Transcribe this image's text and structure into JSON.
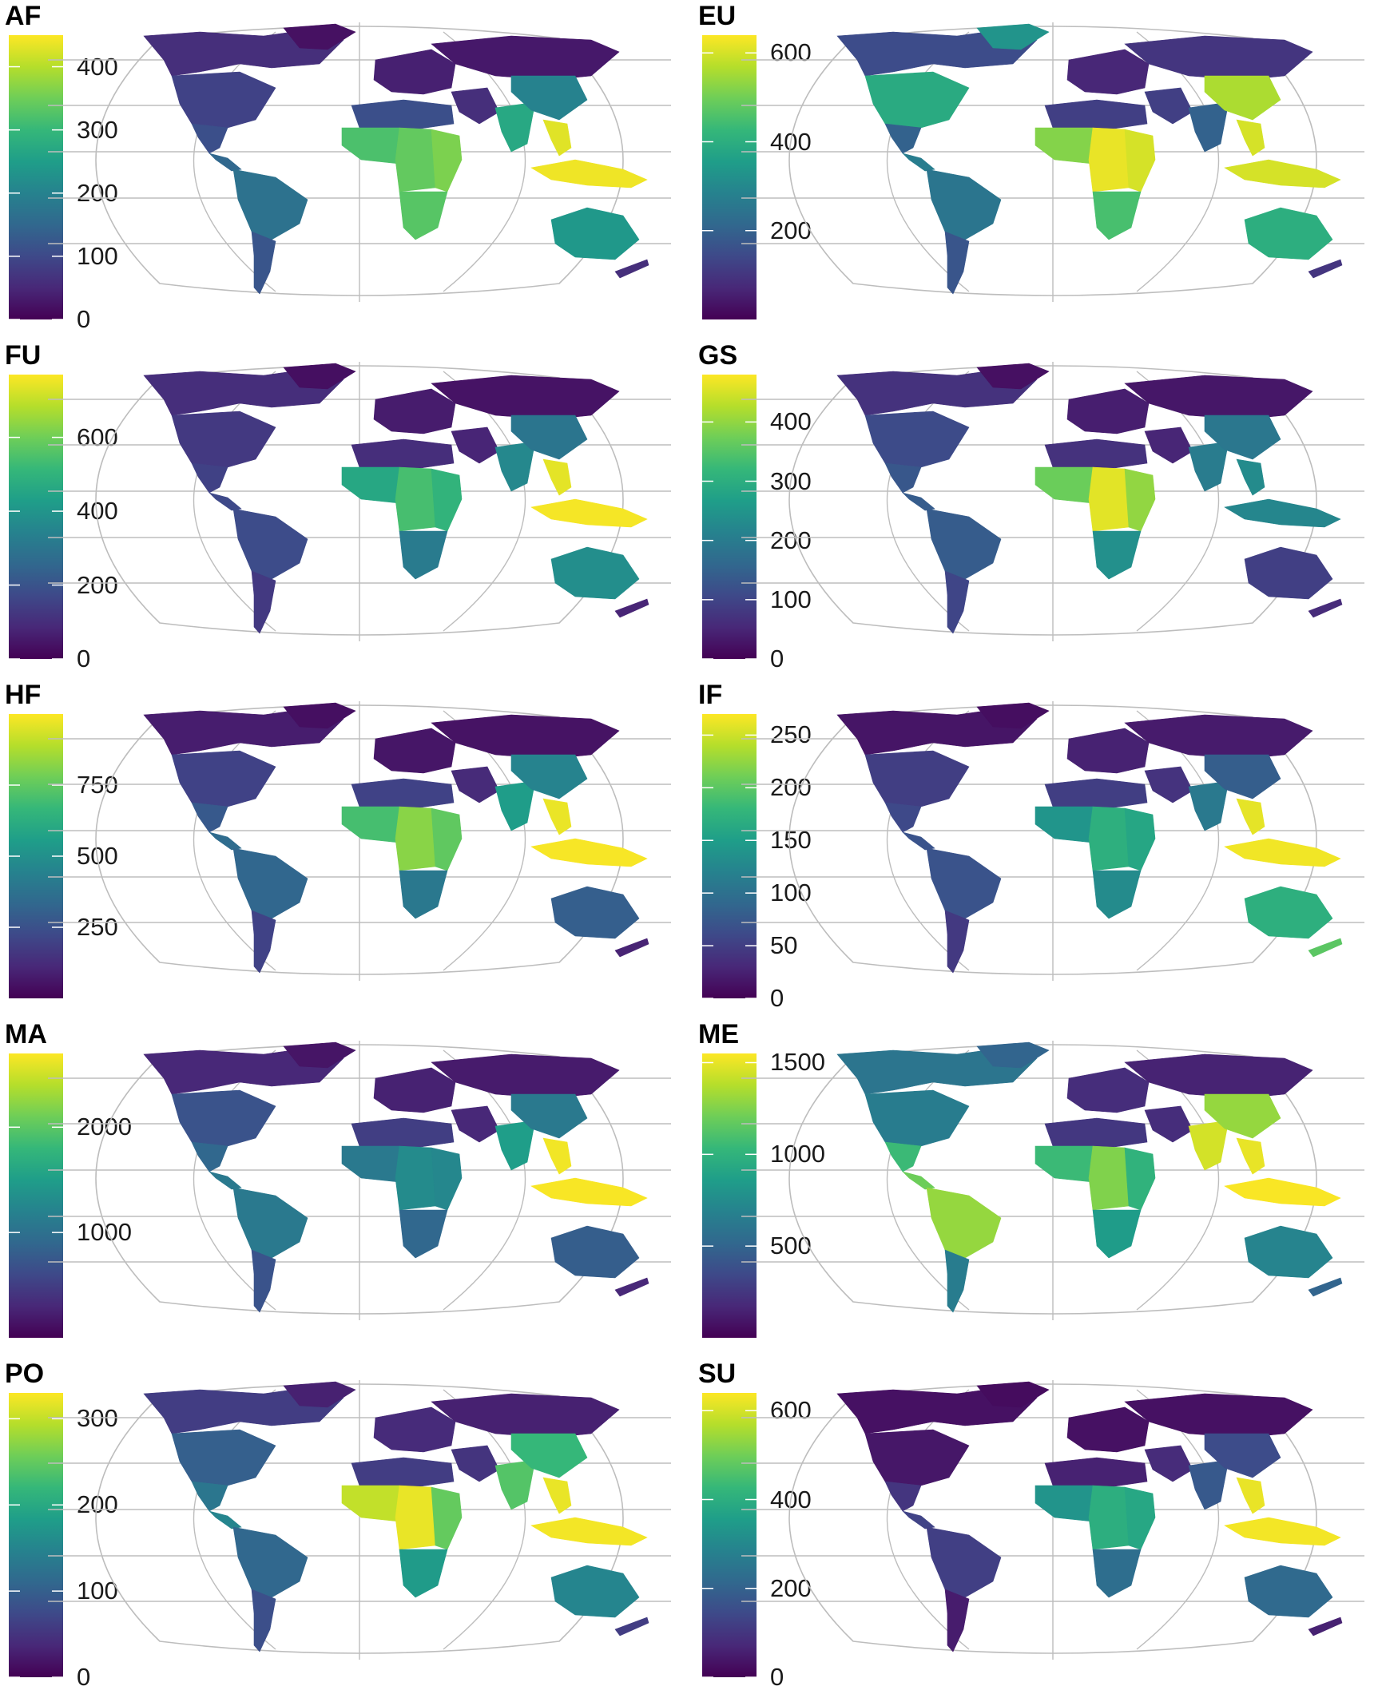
{
  "figure": {
    "panels": [
      {
        "id": "AF",
        "title": "AF",
        "max": 450,
        "ticks": [
          {
            "value": 0,
            "label": "0"
          },
          {
            "value": 100,
            "label": "100"
          },
          {
            "value": 200,
            "label": "200"
          },
          {
            "value": 300,
            "label": "300"
          },
          {
            "value": 400,
            "label": "400"
          }
        ],
        "regions": {
          "canada": 60,
          "usa": 90,
          "greenland": 20,
          "mexico": 110,
          "central_am": 150,
          "n_south_am": 170,
          "s_south_am": 120,
          "europe": 40,
          "russia": 30,
          "n_africa": 110,
          "w_africa": 320,
          "c_africa": 340,
          "e_africa": 360,
          "s_africa": 330,
          "middle_east": 60,
          "india": 270,
          "china": 200,
          "se_asia": 430,
          "indonesia": 440,
          "australia": 240,
          "nz": 60
        }
      },
      {
        "id": "EU",
        "title": "EU",
        "max": 640,
        "ticks": [
          {
            "value": 200,
            "label": "200"
          },
          {
            "value": 400,
            "label": "400"
          },
          {
            "value": 600,
            "label": "600"
          }
        ],
        "regions": {
          "canada": 150,
          "usa": 390,
          "greenland": 330,
          "mexico": 200,
          "central_am": 270,
          "n_south_am": 250,
          "s_south_am": 170,
          "europe": 70,
          "russia": 100,
          "n_africa": 120,
          "w_africa": 520,
          "c_africa": 620,
          "e_africa": 600,
          "s_africa": 450,
          "middle_east": 120,
          "india": 200,
          "china": 560,
          "se_asia": 600,
          "indonesia": 600,
          "australia": 400,
          "nz": 100
        }
      },
      {
        "id": "FU",
        "title": "FU",
        "max": 770,
        "ticks": [
          {
            "value": 0,
            "label": "0"
          },
          {
            "value": 200,
            "label": "200"
          },
          {
            "value": 400,
            "label": "400"
          },
          {
            "value": 600,
            "label": "600"
          }
        ],
        "regions": {
          "canada": 100,
          "usa": 130,
          "greenland": 30,
          "mexico": 150,
          "central_am": 170,
          "n_south_am": 180,
          "s_south_am": 130,
          "europe": 60,
          "russia": 40,
          "n_africa": 100,
          "w_africa": 460,
          "c_africa": 540,
          "e_africa": 500,
          "s_africa": 320,
          "middle_east": 80,
          "india": 360,
          "china": 300,
          "se_asia": 740,
          "indonesia": 760,
          "australia": 380,
          "nz": 80
        }
      },
      {
        "id": "GS",
        "title": "GS",
        "max": 480,
        "ticks": [
          {
            "value": 0,
            "label": "0"
          },
          {
            "value": 100,
            "label": "100"
          },
          {
            "value": 200,
            "label": "200"
          },
          {
            "value": 300,
            "label": "300"
          },
          {
            "value": 400,
            "label": "400"
          }
        ],
        "regions": {
          "canada": 70,
          "usa": 110,
          "greenland": 20,
          "mexico": 130,
          "central_am": 140,
          "n_south_am": 140,
          "s_south_am": 100,
          "europe": 40,
          "russia": 30,
          "n_africa": 70,
          "w_africa": 370,
          "c_africa": 460,
          "e_africa": 400,
          "s_africa": 240,
          "middle_east": 50,
          "india": 200,
          "china": 190,
          "se_asia": 230,
          "indonesia": 220,
          "australia": 90,
          "nz": 60
        }
      },
      {
        "id": "HF",
        "title": "HF",
        "max": 1000,
        "ticks": [
          {
            "value": 250,
            "label": "250"
          },
          {
            "value": 500,
            "label": "500"
          },
          {
            "value": 750,
            "label": "750"
          }
        ],
        "regions": {
          "canada": 80,
          "usa": 200,
          "greenland": 40,
          "mexico": 280,
          "central_am": 350,
          "n_south_am": 330,
          "s_south_am": 200,
          "europe": 60,
          "russia": 50,
          "n_africa": 200,
          "w_africa": 700,
          "c_africa": 820,
          "e_africa": 750,
          "s_africa": 400,
          "middle_east": 120,
          "india": 550,
          "china": 450,
          "se_asia": 970,
          "indonesia": 990,
          "australia": 300,
          "nz": 100
        }
      },
      {
        "id": "IF",
        "title": "IF",
        "max": 270,
        "ticks": [
          {
            "value": 0,
            "label": "0"
          },
          {
            "value": 50,
            "label": "50"
          },
          {
            "value": 100,
            "label": "100"
          },
          {
            "value": 150,
            "label": "150"
          },
          {
            "value": 200,
            "label": "200"
          },
          {
            "value": 250,
            "label": "250"
          }
        ],
        "regions": {
          "canada": 15,
          "usa": 50,
          "greenland": 10,
          "mexico": 60,
          "central_am": 70,
          "n_south_am": 70,
          "s_south_am": 45,
          "europe": 25,
          "russia": 20,
          "n_africa": 50,
          "w_africa": 140,
          "c_africa": 170,
          "e_africa": 160,
          "s_africa": 130,
          "middle_east": 40,
          "india": 110,
          "china": 80,
          "se_asia": 260,
          "indonesia": 265,
          "australia": 170,
          "nz": 200
        }
      },
      {
        "id": "MA",
        "title": "MA",
        "max": 2700,
        "ticks": [
          {
            "value": 1000,
            "label": "1000"
          },
          {
            "value": 2000,
            "label": "2000"
          }
        ],
        "regions": {
          "canada": 300,
          "usa": 700,
          "greenland": 150,
          "mexico": 900,
          "central_am": 1100,
          "n_south_am": 1100,
          "s_south_am": 700,
          "europe": 250,
          "russia": 200,
          "n_africa": 500,
          "w_africa": 1100,
          "c_africa": 1300,
          "e_africa": 1250,
          "s_africa": 900,
          "middle_east": 300,
          "india": 1500,
          "china": 1100,
          "se_asia": 2650,
          "indonesia": 2680,
          "australia": 800,
          "nz": 300
        }
      },
      {
        "id": "ME",
        "title": "ME",
        "max": 1550,
        "ticks": [
          {
            "value": 500,
            "label": "500"
          },
          {
            "value": 1000,
            "label": "1000"
          },
          {
            "value": 1500,
            "label": "1500"
          }
        ],
        "regions": {
          "canada": 600,
          "usa": 650,
          "greenland": 500,
          "mexico": 1050,
          "central_am": 1200,
          "n_south_am": 1300,
          "s_south_am": 650,
          "europe": 200,
          "russia": 150,
          "n_africa": 250,
          "w_africa": 1050,
          "c_africa": 1250,
          "e_africa": 1000,
          "s_africa": 850,
          "middle_east": 200,
          "india": 1450,
          "china": 1300,
          "se_asia": 1500,
          "indonesia": 1540,
          "australia": 700,
          "nz": 500
        }
      },
      {
        "id": "PO",
        "title": "PO",
        "max": 330,
        "ticks": [
          {
            "value": 0,
            "label": "0"
          },
          {
            "value": 100,
            "label": "100"
          },
          {
            "value": 200,
            "label": "200"
          },
          {
            "value": 300,
            "label": "300"
          }
        ],
        "regions": {
          "canada": 60,
          "usa": 100,
          "greenland": 30,
          "mexico": 130,
          "central_am": 150,
          "n_south_am": 110,
          "s_south_am": 80,
          "europe": 40,
          "russia": 30,
          "n_africa": 60,
          "w_africa": 300,
          "c_africa": 320,
          "e_africa": 250,
          "s_africa": 180,
          "middle_east": 50,
          "india": 240,
          "china": 220,
          "se_asia": 320,
          "indonesia": 325,
          "australia": 150,
          "nz": 60
        }
      },
      {
        "id": "SU",
        "title": "SU",
        "max": 640,
        "ticks": [
          {
            "value": 0,
            "label": "0"
          },
          {
            "value": 200,
            "label": "200"
          },
          {
            "value": 400,
            "label": "400"
          },
          {
            "value": 600,
            "label": "600"
          }
        ],
        "regions": {
          "canada": 30,
          "usa": 40,
          "greenland": 20,
          "mexico": 100,
          "central_am": 130,
          "n_south_am": 120,
          "s_south_am": 50,
          "europe": 30,
          "russia": 30,
          "n_africa": 60,
          "w_africa": 330,
          "c_africa": 400,
          "e_africa": 380,
          "s_africa": 230,
          "middle_east": 80,
          "india": 180,
          "china": 150,
          "se_asia": 620,
          "indonesia": 630,
          "australia": 220,
          "nz": 60
        }
      }
    ]
  }
}
